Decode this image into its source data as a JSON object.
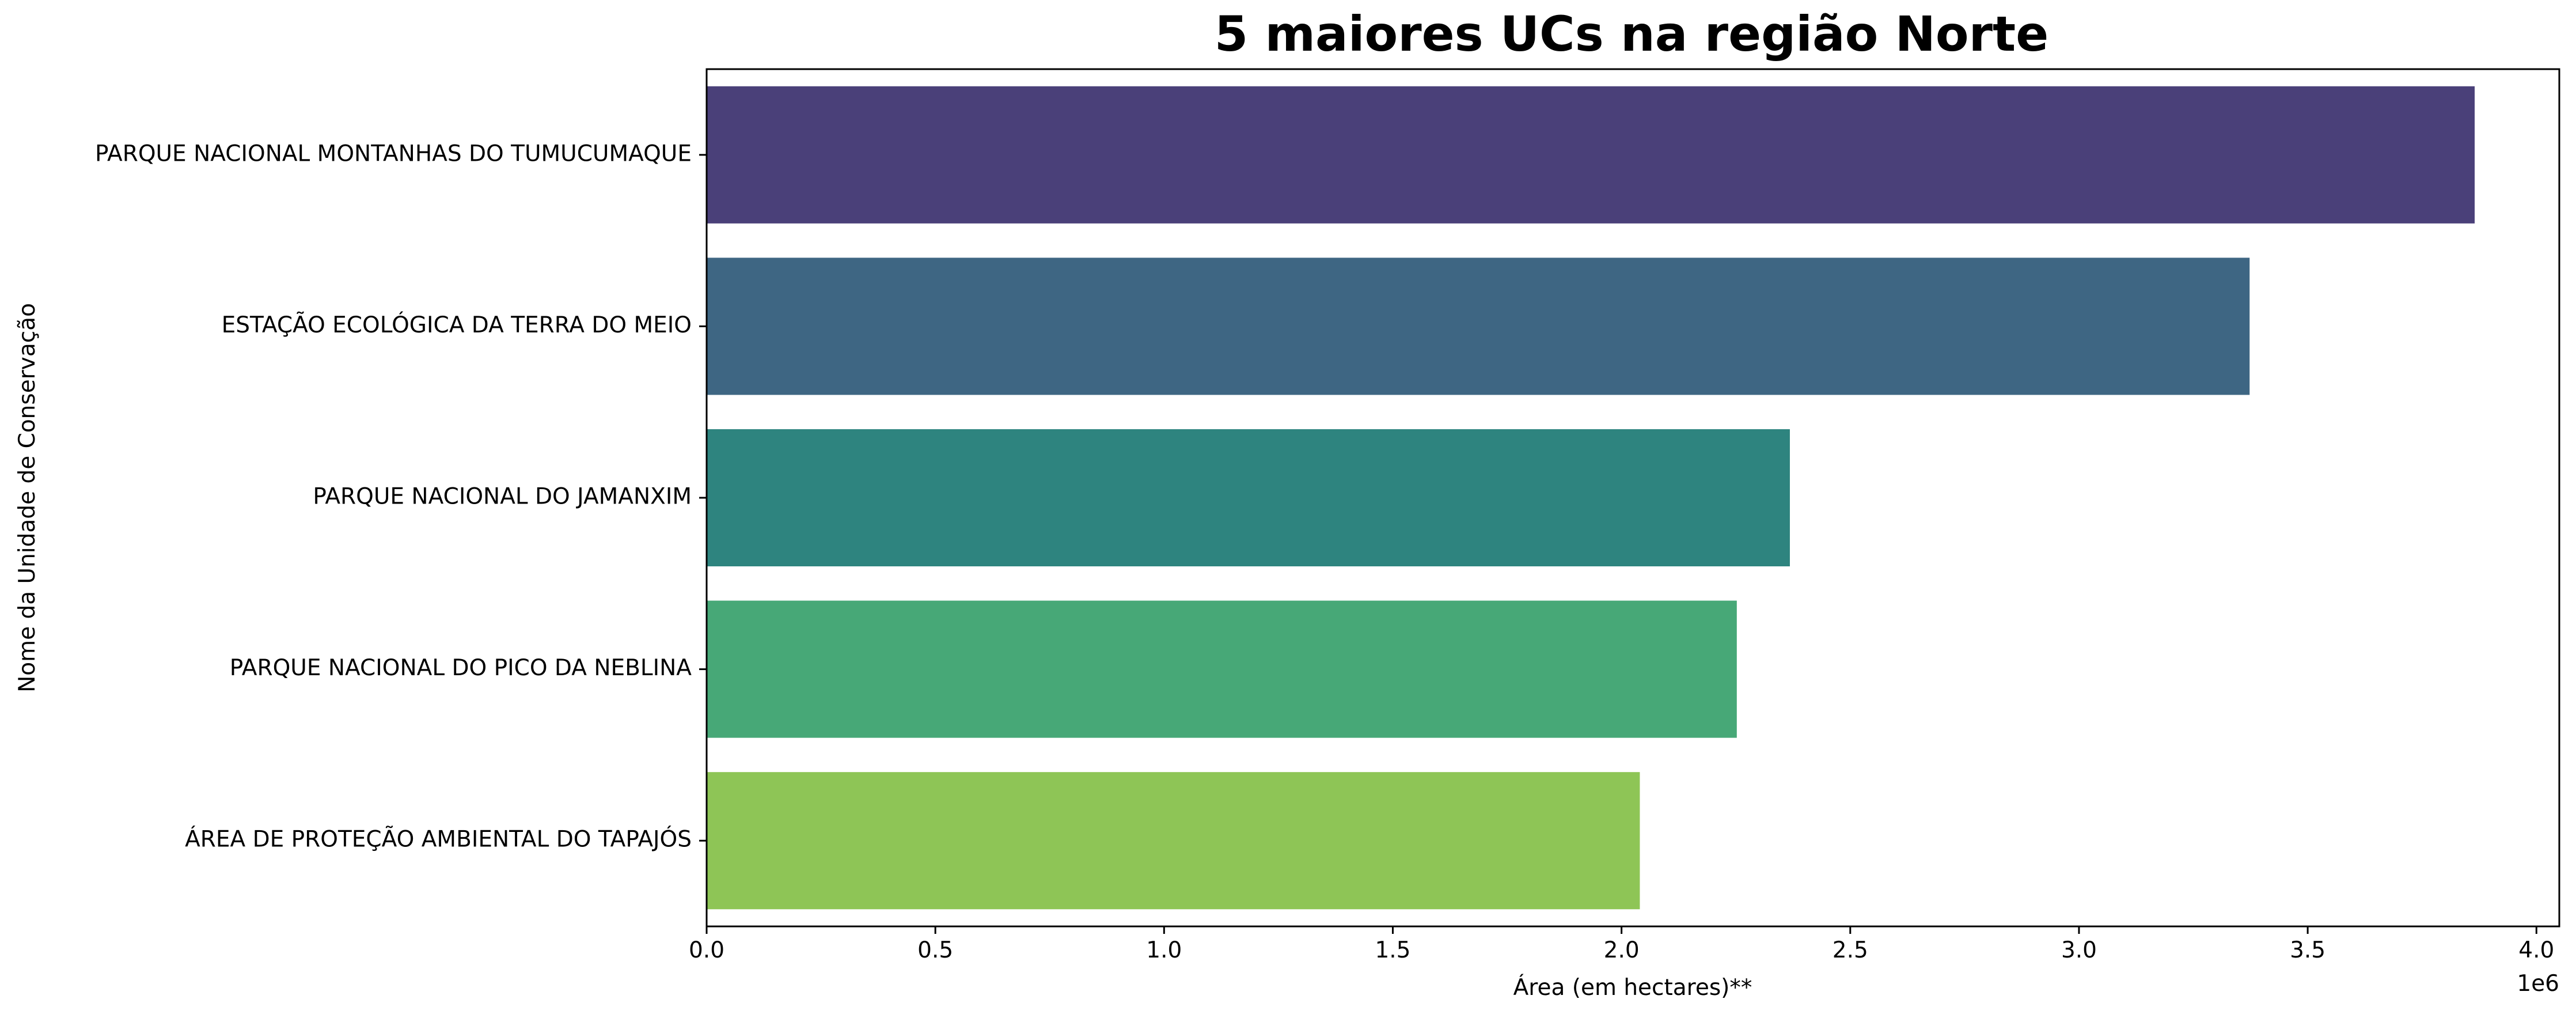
{
  "chart_data": {
    "type": "bar",
    "orientation": "horizontal",
    "title": "5 maiores UCs na região Norte",
    "xlabel": "Área (em hectares)**",
    "ylabel": "Nome da Unidade de Conservação",
    "x_offset_label": "1e6",
    "xlim": [
      0,
      4.05
    ],
    "x_ticks": [
      "0.0",
      "0.5",
      "1.0",
      "1.5",
      "2.0",
      "2.5",
      "3.0",
      "3.5",
      "4.0"
    ],
    "x_tick_values": [
      0,
      0.5,
      1.0,
      1.5,
      2.0,
      2.5,
      3.0,
      3.5,
      4.0
    ],
    "x_scale": 1000000,
    "categories": [
      "PARQUE NACIONAL MONTANHAS DO TUMUCUMAQUE",
      "ESTAÇÃO ECOLÓGICA DA TERRA DO MEIO",
      "PARQUE NACIONAL DO JAMANXIM",
      "PARQUE NACIONAL DO PICO DA NEBLINA",
      "ÁREA DE PROTEÇÃO AMBIENTAL DO TAPAJÓS"
    ],
    "values": [
      3865000,
      3373000,
      2368000,
      2252000,
      2040000
    ],
    "colors": [
      "#4a4079",
      "#3e6683",
      "#2e847f",
      "#47a877",
      "#8ec556"
    ],
    "grid": false,
    "legend": "none"
  }
}
